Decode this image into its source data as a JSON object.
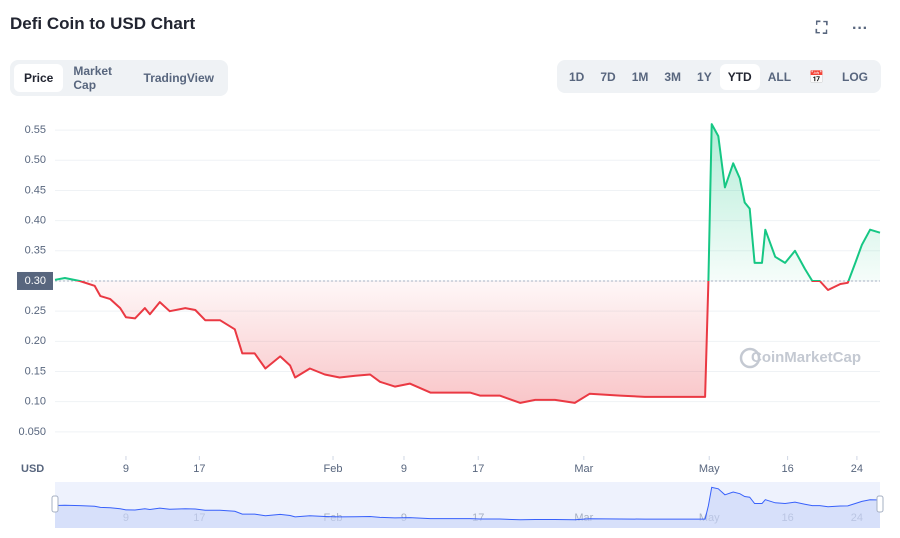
{
  "ui": {
    "title": "Defi Coin to USD Chart",
    "tabs": [
      "Price",
      "Market Cap",
      "TradingView"
    ],
    "ranges": [
      "1D",
      "7D",
      "1M",
      "3M",
      "1Y",
      "YTD",
      "ALL"
    ],
    "log": "LOG",
    "currency": "USD",
    "watermark": "CoinMarketCap"
  },
  "chart_data": {
    "type": "line",
    "x": [
      0,
      1.2,
      3.0,
      4.8,
      5.5,
      6.7,
      7.9,
      8.6,
      9.7,
      10.9,
      11.5,
      12.7,
      13.9,
      15.8,
      17.0,
      18.2,
      20.0,
      21.8,
      22.7,
      24.2,
      25.5,
      27.3,
      28.5,
      29.1,
      30.9,
      32.7,
      34.5,
      36.4,
      38.2,
      39.4,
      41.2,
      43.0,
      45.5,
      47.9,
      50.3,
      51.5,
      53.9,
      56.4,
      58.2,
      60.6,
      63.0,
      64.8,
      68.5,
      71.5,
      74.5,
      78.8,
      79.2,
      79.6,
      80.4,
      81.2,
      82.2,
      83.0,
      83.6,
      84.2,
      84.8,
      85.7,
      86.1,
      87.3,
      88.5,
      89.7,
      90.9,
      91.8,
      92.7,
      93.7,
      95.2,
      96.1,
      97.0,
      97.8,
      98.8,
      100
    ],
    "series": [
      {
        "name": "Price",
        "color": "#16c784",
        "color_below": "#ea3943",
        "values": [
          0.302,
          0.305,
          0.3,
          0.292,
          0.275,
          0.27,
          0.255,
          0.24,
          0.238,
          0.255,
          0.245,
          0.265,
          0.25,
          0.255,
          0.252,
          0.235,
          0.235,
          0.22,
          0.18,
          0.18,
          0.155,
          0.175,
          0.16,
          0.14,
          0.155,
          0.145,
          0.14,
          0.143,
          0.145,
          0.133,
          0.125,
          0.13,
          0.115,
          0.115,
          0.115,
          0.11,
          0.11,
          0.098,
          0.103,
          0.103,
          0.098,
          0.113,
          0.11,
          0.108,
          0.108,
          0.108,
          0.3,
          0.56,
          0.54,
          0.455,
          0.495,
          0.47,
          0.43,
          0.42,
          0.33,
          0.33,
          0.385,
          0.34,
          0.33,
          0.35,
          0.32,
          0.3,
          0.3,
          0.285,
          0.295,
          0.297,
          0.33,
          0.36,
          0.385,
          0.38
        ]
      }
    ],
    "baseline": 0.3,
    "xlim": [
      0,
      100
    ],
    "xticks": [
      {
        "value": 8.6,
        "label": "9"
      },
      {
        "value": 17.5,
        "label": "17"
      },
      {
        "value": 33.7,
        "label": "Feb"
      },
      {
        "value": 42.3,
        "label": "9"
      },
      {
        "value": 51.3,
        "label": "17"
      },
      {
        "value": 64.1,
        "label": "Mar"
      },
      {
        "value": 79.3,
        "label": "May"
      },
      {
        "value": 88.8,
        "label": "16"
      },
      {
        "value": 97.2,
        "label": "24"
      }
    ],
    "ylim": [
      0.01,
      0.58
    ],
    "yticks": [
      {
        "value": 0.05,
        "label": "0.050"
      },
      {
        "value": 0.1,
        "label": "0.10"
      },
      0.15,
      {
        "value": 0.2,
        "label": "0.20"
      },
      0.25,
      {
        "value": 0.3,
        "label": "0.30"
      },
      0.35,
      {
        "value": 0.4,
        "label": "0.40"
      },
      0.45,
      {
        "value": 0.5,
        "label": "0.50"
      },
      0.55
    ],
    "grid": true
  }
}
